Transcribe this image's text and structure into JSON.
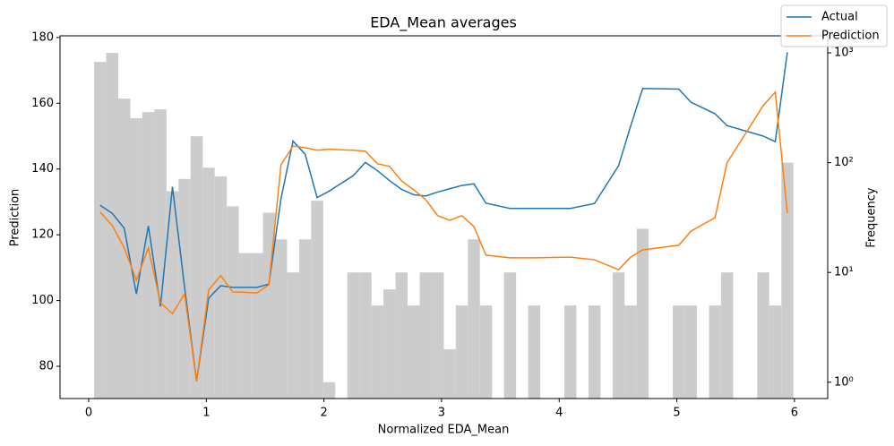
{
  "chart_data": {
    "type": "line",
    "title": "EDA_Mean averages",
    "x_label": "Normalized EDA_Mean",
    "y_label": "Prediction",
    "y2_label": "Frequency",
    "x": [
      0.097,
      0.2,
      0.302,
      0.405,
      0.507,
      0.61,
      0.712,
      0.815,
      0.917,
      1.02,
      1.122,
      1.225,
      1.327,
      1.43,
      1.532,
      1.635,
      1.737,
      1.84,
      1.942,
      2.045,
      2.25,
      2.352,
      2.455,
      2.557,
      2.66,
      2.762,
      2.865,
      2.967,
      3.07,
      3.172,
      3.275,
      3.377,
      3.582,
      3.787,
      4.095,
      4.3,
      4.505,
      4.607,
      4.71,
      5.017,
      5.12,
      5.325,
      5.427,
      5.735,
      5.837,
      5.94
    ],
    "series": [
      {
        "name": "Actual",
        "color": "#1f77b4",
        "values": [
          129.0,
          126.5,
          122,
          102,
          122.7,
          98.2,
          134.6,
          104,
          75.5,
          100.7,
          104.5,
          104,
          104,
          104,
          105,
          131,
          148.5,
          144.5,
          131.3,
          133.3,
          138,
          142,
          139.5,
          136.5,
          133.8,
          132.2,
          131.8,
          133,
          134,
          135,
          135.5,
          129.6,
          128,
          128,
          128,
          129.5,
          141,
          153,
          164.5,
          164.3,
          160.3,
          156.8,
          153.2,
          150,
          148.3,
          175.5
        ]
      },
      {
        "name": "Prediction",
        "color": "#ff7f0e",
        "values": [
          126.9,
          122.8,
          116,
          106.2,
          116,
          99.3,
          96,
          102,
          75.5,
          103.2,
          107.6,
          102.6,
          102.5,
          102.3,
          104.8,
          141.3,
          147,
          146.5,
          145.7,
          146,
          145.7,
          145.4,
          141.6,
          140.8,
          136.4,
          133.7,
          130.7,
          125.8,
          124.4,
          125.8,
          122.5,
          113.8,
          113,
          113,
          113.2,
          112.4,
          109.4,
          113.2,
          115.4,
          116.8,
          121.1,
          125.2,
          141.9,
          159.3,
          163.4,
          126.6
        ]
      }
    ],
    "histogram": {
      "type": "histogram",
      "axis": "y2",
      "color": "#cccccc",
      "bins": [
        0.046,
        0.149,
        0.251,
        0.354,
        0.456,
        0.559,
        0.661,
        0.764,
        0.866,
        0.969,
        1.071,
        1.174,
        1.276,
        1.379,
        1.481,
        1.584,
        1.686,
        1.789,
        1.891,
        1.994,
        2.096,
        2.199,
        2.301,
        2.404,
        2.506,
        2.609,
        2.711,
        2.814,
        2.916,
        3.019,
        3.121,
        3.224,
        3.326,
        3.429,
        3.531,
        3.634,
        3.736,
        3.839,
        3.941,
        4.044,
        4.146,
        4.249,
        4.351,
        4.454,
        4.556,
        4.659,
        4.761,
        4.864,
        4.966,
        5.069,
        5.171,
        5.274,
        5.376,
        5.479,
        5.581,
        5.684,
        5.786,
        5.889,
        5.991
      ],
      "values": [
        828,
        1000,
        383,
        254,
        289,
        306,
        55,
        71,
        174,
        90,
        75,
        40,
        15,
        15,
        35,
        20,
        10,
        20,
        45,
        1,
        0,
        10,
        10,
        5,
        7,
        10,
        5,
        10,
        10,
        2,
        5,
        20,
        5,
        0,
        10,
        0,
        5,
        0,
        0,
        5,
        0,
        5,
        0,
        10,
        5,
        25,
        0,
        0,
        5,
        5,
        0,
        5,
        10,
        0,
        0,
        10,
        5,
        100
      ]
    },
    "xlim": [
      -0.244,
      6.283
    ],
    "xticks": [
      0,
      1,
      2,
      3,
      4,
      5,
      6
    ],
    "ylim": [
      70.2,
      180.5
    ],
    "yticks": [
      80,
      100,
      120,
      140,
      160,
      180
    ],
    "y2lim": [
      0.71,
      1430
    ],
    "y2scale": "log",
    "y2ticks": [
      {
        "value": 1,
        "label": "10⁰"
      },
      {
        "value": 10,
        "label": "10¹"
      },
      {
        "value": 100,
        "label": "10²"
      },
      {
        "value": 1000,
        "label": "10³"
      }
    ],
    "legend": "upper right"
  }
}
